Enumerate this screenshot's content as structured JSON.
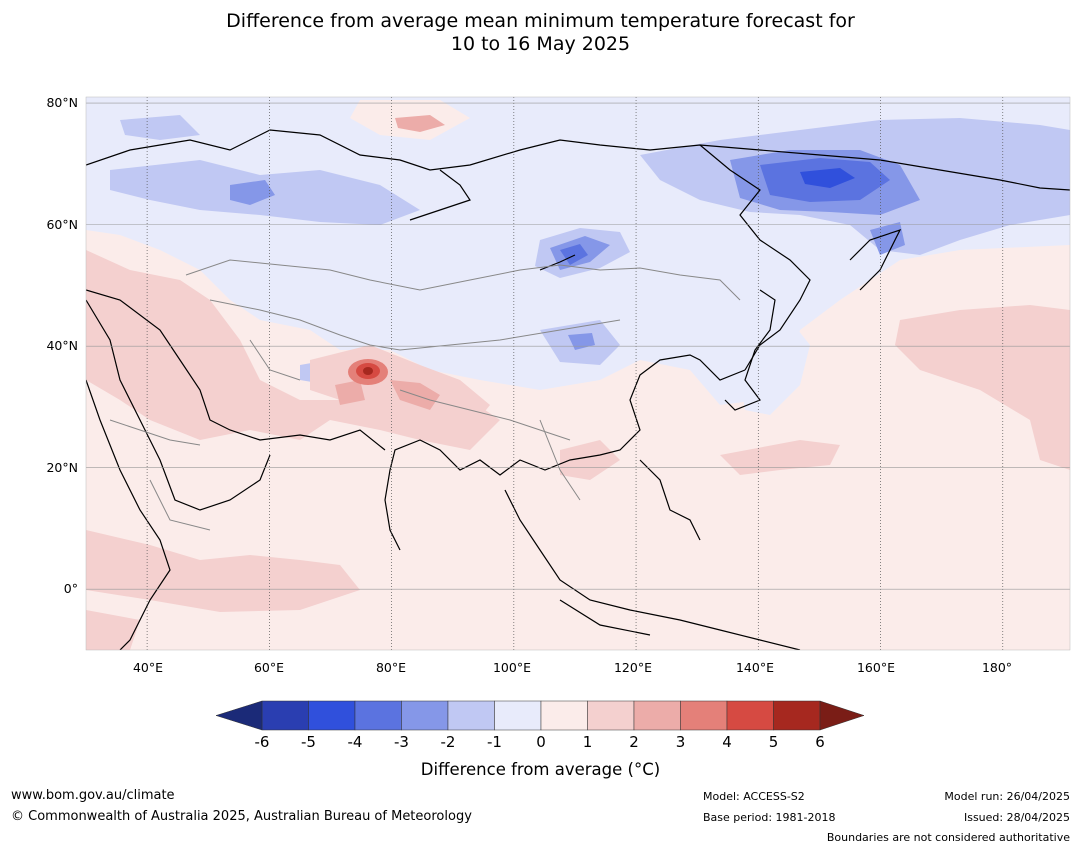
{
  "title": {
    "line1": "Difference from average mean minimum temperature forecast for",
    "line2": "10 to 16 May 2025"
  },
  "map": {
    "lon_range": [
      30,
      191
    ],
    "lat_range": [
      -10,
      81
    ],
    "lat_ticks": [
      "80°N",
      "60°N",
      "40°N",
      "20°N",
      "0°"
    ],
    "lon_ticks": [
      "40°E",
      "60°E",
      "80°E",
      "100°E",
      "120°E",
      "140°E",
      "160°E",
      "180°"
    ],
    "background_anomaly": "0 to 1",
    "features": [
      {
        "region": "Eastern Siberia",
        "anomaly": "-3 to -4"
      },
      {
        "region": "Western Siberia",
        "anomaly": "-2 to -3"
      },
      {
        "region": "Mongolia / Lake Baikal",
        "anomaly": "-3 to -4"
      },
      {
        "region": "Western Himalaya / Tibet",
        "anomaly": "3 to 5"
      },
      {
        "region": "Middle East / Arabia",
        "anomaly": "1 to 2"
      },
      {
        "region": "North Pacific",
        "anomaly": "1 to 2"
      }
    ]
  },
  "colorbar": {
    "labels": [
      "-6",
      "-5",
      "-4",
      "-3",
      "-2",
      "-1",
      "0",
      "1",
      "2",
      "3",
      "4",
      "5",
      "6"
    ],
    "colors": [
      "#2a3eb1",
      "#3050dc",
      "#5b73e0",
      "#8597e8",
      "#c0c8f3",
      "#e8ebfb",
      "#fbecea",
      "#f4d0cf",
      "#ecaca9",
      "#e48079",
      "#d64a42",
      "#a6281f"
    ],
    "low_extend_color": "#1b2a78",
    "high_extend_color": "#7a1d16",
    "title": "Difference from average (°C)"
  },
  "footer": {
    "website": "www.bom.gov.au/climate",
    "copyright": "© Commonwealth of Australia 2025, Australian Bureau of Meteorology",
    "model": "Model: ACCESS-S2",
    "base_period": "Base period: 1981-2018",
    "model_run": "Model run: 26/04/2025",
    "issued": "Issued: 28/04/2025",
    "disclaimer": "Boundaries are not considered authoritative"
  }
}
